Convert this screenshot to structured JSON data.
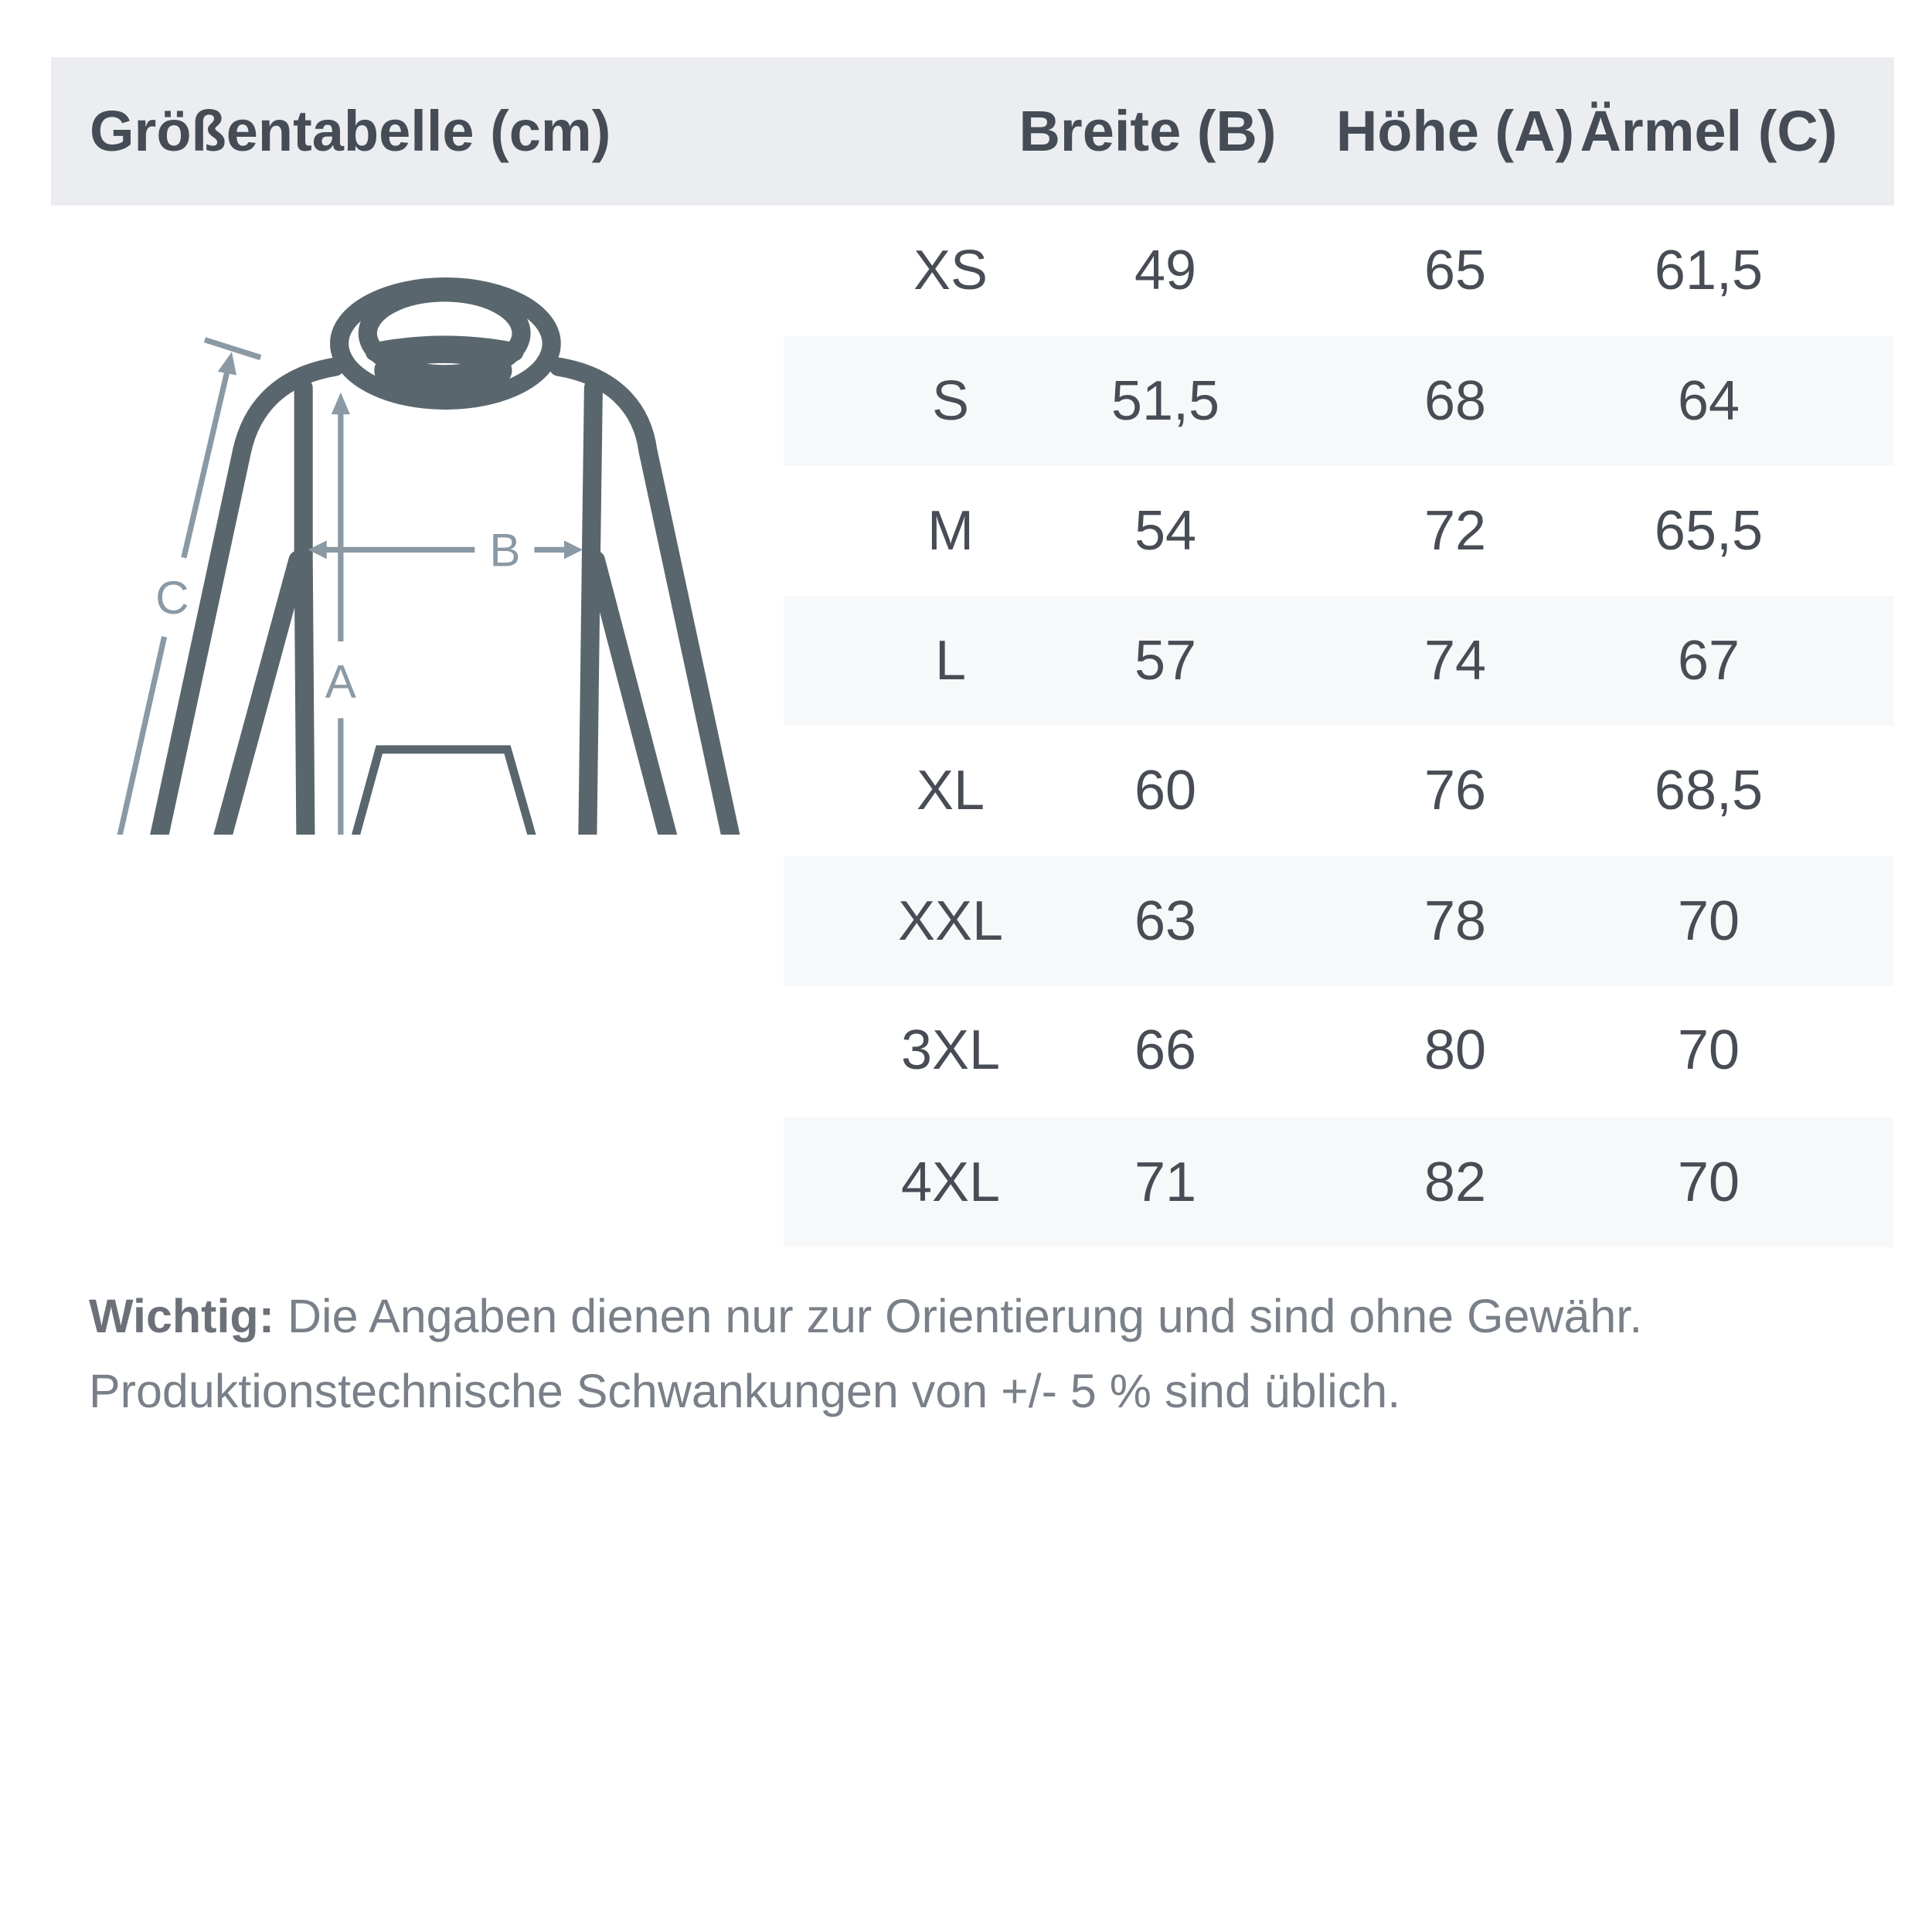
{
  "header": {
    "title": "Größentabelle (cm)",
    "columns": [
      "Breite (B)",
      "Höhe (A)",
      "Ärmel (C)"
    ]
  },
  "diagram": {
    "labels": {
      "a": "A",
      "b": "B",
      "c": "C"
    },
    "outline_color": "#5a666d",
    "measure_color": "#8a99a4"
  },
  "rows": [
    {
      "size": "XS",
      "breite": "49",
      "hoehe": "65",
      "aermel": "61,5"
    },
    {
      "size": "S",
      "breite": "51,5",
      "hoehe": "68",
      "aermel": "64"
    },
    {
      "size": "M",
      "breite": "54",
      "hoehe": "72",
      "aermel": "65,5"
    },
    {
      "size": "L",
      "breite": "57",
      "hoehe": "74",
      "aermel": "67"
    },
    {
      "size": "XL",
      "breite": "60",
      "hoehe": "76",
      "aermel": "68,5"
    },
    {
      "size": "XXL",
      "breite": "63",
      "hoehe": "78",
      "aermel": "70"
    },
    {
      "size": "3XL",
      "breite": "66",
      "hoehe": "80",
      "aermel": "70"
    },
    {
      "size": "4XL",
      "breite": "71",
      "hoehe": "82",
      "aermel": "70"
    }
  ],
  "footer": {
    "bold": "Wichtig:",
    "line1": " Die Angaben dienen nur zur Orientierung und sind ohne Gewähr.",
    "line2": "Produktionstechnische Schwankungen von +/- 5 % sind üblich."
  }
}
